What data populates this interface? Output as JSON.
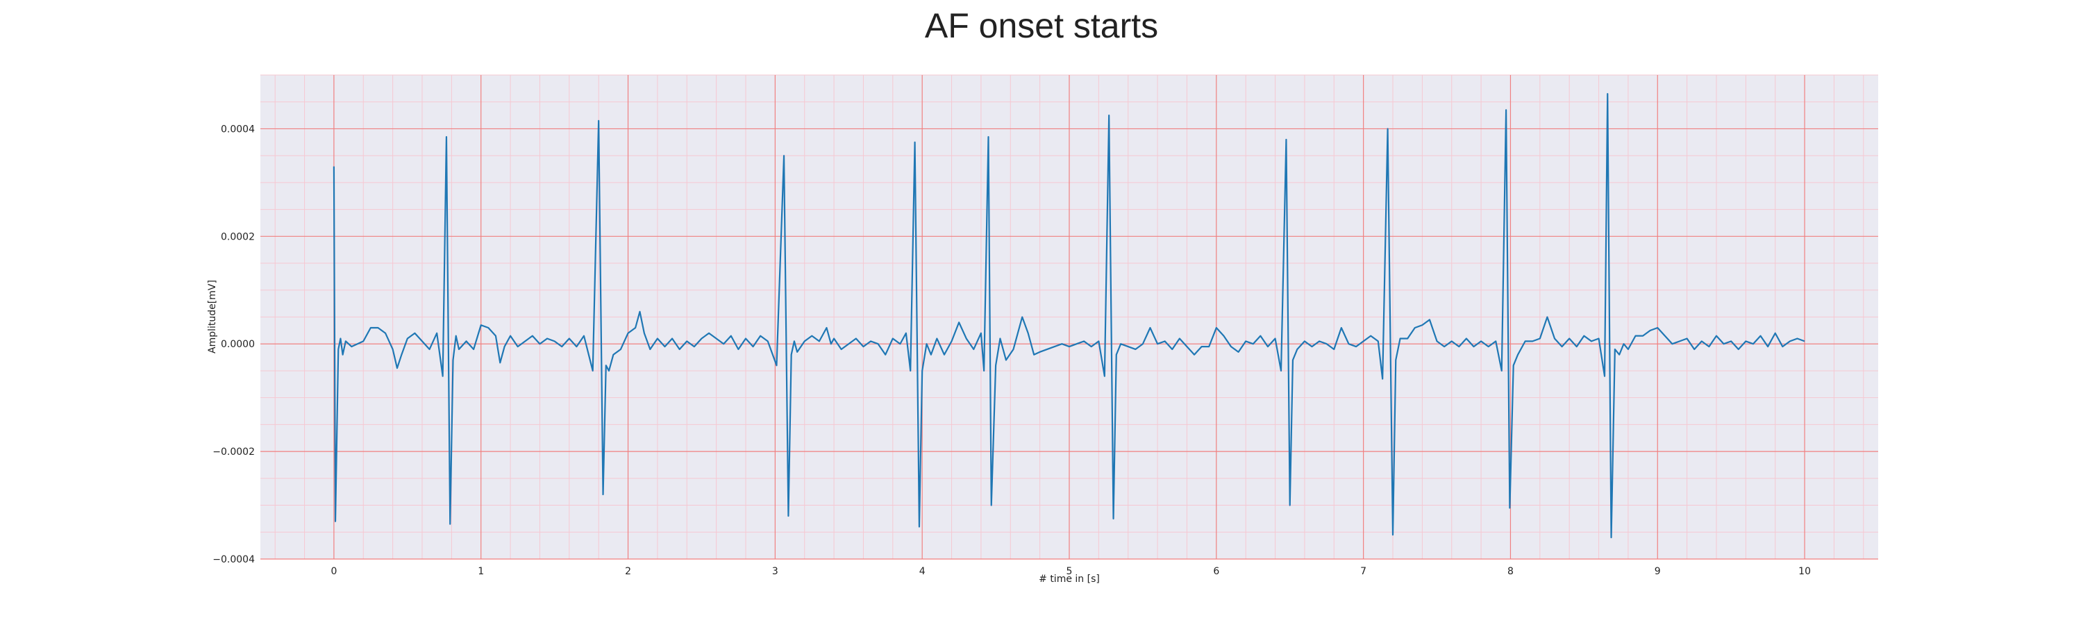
{
  "chart_data": {
    "type": "line",
    "title": "AF onset starts",
    "xlabel": "# time in [s]",
    "ylabel": "Amplitude[mV]",
    "xlim": [
      -0.5,
      10.5
    ],
    "ylim": [
      -0.0004,
      0.0005
    ],
    "x_ticks": [
      0,
      1,
      2,
      3,
      4,
      5,
      6,
      7,
      8,
      9,
      10
    ],
    "x_tick_labels": [
      "0",
      "1",
      "2",
      "3",
      "4",
      "5",
      "6",
      "7",
      "8",
      "9",
      "10"
    ],
    "y_ticks": [
      0.0004,
      0.0002,
      0.0,
      -0.0002,
      -0.0004
    ],
    "y_tick_labels": [
      "0.0004",
      "0.0002",
      "0.0000",
      "−0.0002",
      "−0.0004"
    ],
    "grid": "major and minor",
    "legend": "none",
    "colors": {
      "background": "#eaeaf2",
      "major_grid": "#f08080",
      "minor_grid": "#f6c8d2",
      "line": "#1f77b4"
    },
    "series": [
      {
        "points": [
          [
            0.0,
            0.00033
          ],
          [
            0.01,
            -0.00033
          ],
          [
            0.03,
            -1e-05
          ],
          [
            0.045,
            1e-05
          ],
          [
            0.06,
            -2e-05
          ],
          [
            0.08,
            5e-06
          ],
          [
            0.12,
            -5e-06
          ],
          [
            0.16,
            0.0
          ],
          [
            0.2,
            5e-06
          ],
          [
            0.25,
            3e-05
          ],
          [
            0.3,
            3e-05
          ],
          [
            0.35,
            2e-05
          ],
          [
            0.4,
            -1e-05
          ],
          [
            0.43,
            -4.5e-05
          ],
          [
            0.46,
            -2e-05
          ],
          [
            0.5,
            1e-05
          ],
          [
            0.55,
            2e-05
          ],
          [
            0.6,
            5e-06
          ],
          [
            0.65,
            -1e-05
          ],
          [
            0.7,
            2e-05
          ],
          [
            0.74,
            -6e-05
          ],
          [
            0.765,
            0.000385
          ],
          [
            0.79,
            -0.000335
          ],
          [
            0.81,
            -3e-05
          ],
          [
            0.83,
            1.5e-05
          ],
          [
            0.85,
            -1e-05
          ],
          [
            0.9,
            5e-06
          ],
          [
            0.95,
            -1e-05
          ],
          [
            1.0,
            3.5e-05
          ],
          [
            1.05,
            3e-05
          ],
          [
            1.1,
            1.5e-05
          ],
          [
            1.13,
            -3.5e-05
          ],
          [
            1.16,
            -5e-06
          ],
          [
            1.2,
            1.5e-05
          ],
          [
            1.25,
            -5e-06
          ],
          [
            1.3,
            5e-06
          ],
          [
            1.35,
            1.5e-05
          ],
          [
            1.4,
            0.0
          ],
          [
            1.45,
            1e-05
          ],
          [
            1.5,
            5e-06
          ],
          [
            1.55,
            -5e-06
          ],
          [
            1.6,
            1e-05
          ],
          [
            1.65,
            -5e-06
          ],
          [
            1.7,
            1.5e-05
          ],
          [
            1.76,
            -5e-05
          ],
          [
            1.8,
            0.000415
          ],
          [
            1.83,
            -0.00028
          ],
          [
            1.85,
            -4e-05
          ],
          [
            1.87,
            -5e-05
          ],
          [
            1.9,
            -2e-05
          ],
          [
            1.95,
            -1e-05
          ],
          [
            2.0,
            2e-05
          ],
          [
            2.05,
            3e-05
          ],
          [
            2.08,
            6e-05
          ],
          [
            2.11,
            2e-05
          ],
          [
            2.15,
            -1e-05
          ],
          [
            2.2,
            1e-05
          ],
          [
            2.25,
            -5e-06
          ],
          [
            2.3,
            1e-05
          ],
          [
            2.35,
            -1e-05
          ],
          [
            2.4,
            5e-06
          ],
          [
            2.45,
            -5e-06
          ],
          [
            2.5,
            1e-05
          ],
          [
            2.55,
            2e-05
          ],
          [
            2.6,
            1e-05
          ],
          [
            2.65,
            0.0
          ],
          [
            2.7,
            1.5e-05
          ],
          [
            2.75,
            -1e-05
          ],
          [
            2.8,
            1e-05
          ],
          [
            2.85,
            -5e-06
          ],
          [
            2.9,
            1.5e-05
          ],
          [
            2.95,
            5e-06
          ],
          [
            3.01,
            -4e-05
          ],
          [
            3.06,
            0.00035
          ],
          [
            3.09,
            -0.00032
          ],
          [
            3.11,
            -2e-05
          ],
          [
            3.13,
            5e-06
          ],
          [
            3.15,
            -1.5e-05
          ],
          [
            3.2,
            5e-06
          ],
          [
            3.25,
            1.5e-05
          ],
          [
            3.3,
            5e-06
          ],
          [
            3.35,
            3e-05
          ],
          [
            3.38,
            0.0
          ],
          [
            3.4,
            1e-05
          ],
          [
            3.45,
            -1e-05
          ],
          [
            3.5,
            0.0
          ],
          [
            3.55,
            1e-05
          ],
          [
            3.6,
            -5e-06
          ],
          [
            3.65,
            5e-06
          ],
          [
            3.7,
            0.0
          ],
          [
            3.75,
            -2e-05
          ],
          [
            3.8,
            1e-05
          ],
          [
            3.85,
            0.0
          ],
          [
            3.89,
            2e-05
          ],
          [
            3.92,
            -5e-05
          ],
          [
            3.95,
            0.000375
          ],
          [
            3.98,
            -0.00034
          ],
          [
            4.0,
            -5e-05
          ],
          [
            4.03,
            0.0
          ],
          [
            4.06,
            -2e-05
          ],
          [
            4.1,
            1e-05
          ],
          [
            4.15,
            -2e-05
          ],
          [
            4.2,
            5e-06
          ],
          [
            4.25,
            4e-05
          ],
          [
            4.3,
            1e-05
          ],
          [
            4.35,
            -1e-05
          ],
          [
            4.4,
            2e-05
          ],
          [
            4.42,
            -5e-05
          ],
          [
            4.45,
            0.000385
          ],
          [
            4.47,
            -0.0003
          ],
          [
            4.5,
            -4e-05
          ],
          [
            4.53,
            1e-05
          ],
          [
            4.57,
            -3e-05
          ],
          [
            4.62,
            -1e-05
          ],
          [
            4.68,
            5e-05
          ],
          [
            4.72,
            2e-05
          ],
          [
            4.76,
            -2e-05
          ],
          [
            4.8,
            -1.5e-05
          ],
          [
            4.85,
            -1e-05
          ],
          [
            4.9,
            -5e-06
          ],
          [
            4.95,
            0.0
          ],
          [
            5.0,
            -5e-06
          ],
          [
            5.05,
            0.0
          ],
          [
            5.1,
            5e-06
          ],
          [
            5.15,
            -5e-06
          ],
          [
            5.2,
            5e-06
          ],
          [
            5.24,
            -6e-05
          ],
          [
            5.27,
            0.000425
          ],
          [
            5.3,
            -0.000325
          ],
          [
            5.32,
            -2e-05
          ],
          [
            5.35,
            0.0
          ],
          [
            5.4,
            -5e-06
          ],
          [
            5.45,
            -1e-05
          ],
          [
            5.5,
            0.0
          ],
          [
            5.55,
            3e-05
          ],
          [
            5.6,
            0.0
          ],
          [
            5.65,
            5e-06
          ],
          [
            5.7,
            -1e-05
          ],
          [
            5.75,
            1e-05
          ],
          [
            5.8,
            -5e-06
          ],
          [
            5.85,
            -2e-05
          ],
          [
            5.9,
            -5e-06
          ],
          [
            5.95,
            -5e-06
          ],
          [
            6.0,
            3e-05
          ],
          [
            6.05,
            1.5e-05
          ],
          [
            6.1,
            -5e-06
          ],
          [
            6.15,
            -1.5e-05
          ],
          [
            6.2,
            5e-06
          ],
          [
            6.25,
            0.0
          ],
          [
            6.3,
            1.5e-05
          ],
          [
            6.35,
            -5e-06
          ],
          [
            6.4,
            1e-05
          ],
          [
            6.44,
            -5e-05
          ],
          [
            6.475,
            0.00038
          ],
          [
            6.5,
            -0.0003
          ],
          [
            6.52,
            -3e-05
          ],
          [
            6.55,
            -1e-05
          ],
          [
            6.6,
            5e-06
          ],
          [
            6.65,
            -5e-06
          ],
          [
            6.7,
            5e-06
          ],
          [
            6.75,
            0.0
          ],
          [
            6.8,
            -1e-05
          ],
          [
            6.85,
            3e-05
          ],
          [
            6.9,
            0.0
          ],
          [
            6.95,
            -5e-06
          ],
          [
            7.0,
            5e-06
          ],
          [
            7.05,
            1.5e-05
          ],
          [
            7.1,
            5e-06
          ],
          [
            7.13,
            -6.5e-05
          ],
          [
            7.165,
            0.0004
          ],
          [
            7.2,
            -0.000355
          ],
          [
            7.22,
            -3e-05
          ],
          [
            7.25,
            1e-05
          ],
          [
            7.3,
            1e-05
          ],
          [
            7.35,
            3e-05
          ],
          [
            7.4,
            3.5e-05
          ],
          [
            7.45,
            4.5e-05
          ],
          [
            7.5,
            5e-06
          ],
          [
            7.55,
            -5e-06
          ],
          [
            7.6,
            5e-06
          ],
          [
            7.65,
            -5e-06
          ],
          [
            7.7,
            1e-05
          ],
          [
            7.75,
            -5e-06
          ],
          [
            7.8,
            5e-06
          ],
          [
            7.85,
            -5e-06
          ],
          [
            7.9,
            5e-06
          ],
          [
            7.94,
            -5e-05
          ],
          [
            7.97,
            0.000435
          ],
          [
            7.995,
            -0.000305
          ],
          [
            8.02,
            -4e-05
          ],
          [
            8.05,
            -2e-05
          ],
          [
            8.1,
            5e-06
          ],
          [
            8.15,
            5e-06
          ],
          [
            8.2,
            1e-05
          ],
          [
            8.25,
            5e-05
          ],
          [
            8.3,
            1e-05
          ],
          [
            8.35,
            -5e-06
          ],
          [
            8.4,
            1e-05
          ],
          [
            8.45,
            -5e-06
          ],
          [
            8.5,
            1.5e-05
          ],
          [
            8.55,
            5e-06
          ],
          [
            8.6,
            1e-05
          ],
          [
            8.64,
            -6e-05
          ],
          [
            8.66,
            0.000465
          ],
          [
            8.685,
            -0.00036
          ],
          [
            8.71,
            -1e-05
          ],
          [
            8.74,
            -2e-05
          ],
          [
            8.77,
            0.0
          ],
          [
            8.8,
            -1e-05
          ],
          [
            8.85,
            1.5e-05
          ],
          [
            8.9,
            1.5e-05
          ],
          [
            8.95,
            2.5e-05
          ],
          [
            9.0,
            3e-05
          ],
          [
            9.05,
            1.5e-05
          ],
          [
            9.1,
            0.0
          ],
          [
            9.15,
            5e-06
          ],
          [
            9.2,
            1e-05
          ],
          [
            9.25,
            -1e-05
          ],
          [
            9.3,
            5e-06
          ],
          [
            9.35,
            -5e-06
          ],
          [
            9.4,
            1.5e-05
          ],
          [
            9.45,
            0.0
          ],
          [
            9.5,
            5e-06
          ],
          [
            9.55,
            -1e-05
          ],
          [
            9.6,
            5e-06
          ],
          [
            9.65,
            0.0
          ],
          [
            9.7,
            1.5e-05
          ],
          [
            9.75,
            -5e-06
          ],
          [
            9.8,
            2e-05
          ],
          [
            9.85,
            -5e-06
          ],
          [
            9.9,
            5e-06
          ],
          [
            9.95,
            1e-05
          ],
          [
            10.0,
            5e-06
          ]
        ]
      }
    ]
  }
}
